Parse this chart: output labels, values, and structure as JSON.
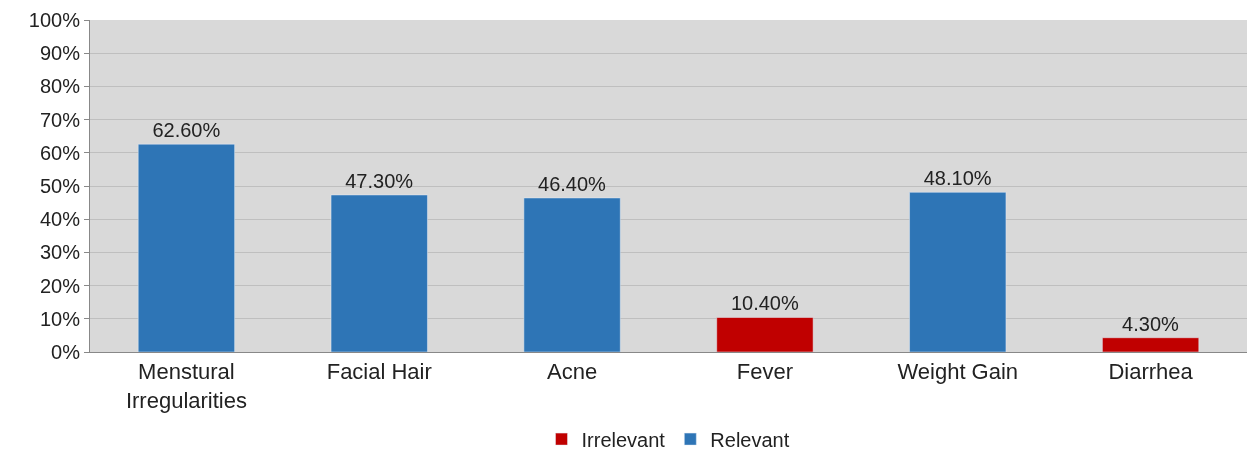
{
  "chart_data": {
    "type": "bar",
    "categories": [
      "Menstural Irregularities",
      "Facial Hair",
      "Acne",
      "Fever",
      "Weight Gain",
      "Diarrhea"
    ],
    "series": [
      {
        "name": "Irrelevant",
        "color": "#c00000",
        "values": [
          null,
          null,
          null,
          10.4,
          null,
          4.3
        ],
        "value_labels": [
          null,
          null,
          null,
          "10.40%",
          null,
          "4.30%"
        ]
      },
      {
        "name": "Relevant",
        "color": "#2e75b6",
        "values": [
          62.6,
          47.3,
          46.4,
          null,
          48.1,
          null
        ],
        "value_labels": [
          "62.60%",
          "47.30%",
          "46.40%",
          null,
          "48.10%",
          null
        ]
      }
    ],
    "ylim": [
      0,
      100
    ],
    "yticks": [
      {
        "value": 0,
        "label": "0%"
      },
      {
        "value": 10,
        "label": "10%"
      },
      {
        "value": 20,
        "label": "20%"
      },
      {
        "value": 30,
        "label": "30%"
      },
      {
        "value": 40,
        "label": "40%"
      },
      {
        "value": 50,
        "label": "50%"
      },
      {
        "value": 60,
        "label": "60%"
      },
      {
        "value": 70,
        "label": "70%"
      },
      {
        "value": 80,
        "label": "80%"
      },
      {
        "value": 90,
        "label": "90%"
      },
      {
        "value": 100,
        "label": "100%"
      }
    ],
    "grid": "y",
    "legend": "bottom"
  }
}
